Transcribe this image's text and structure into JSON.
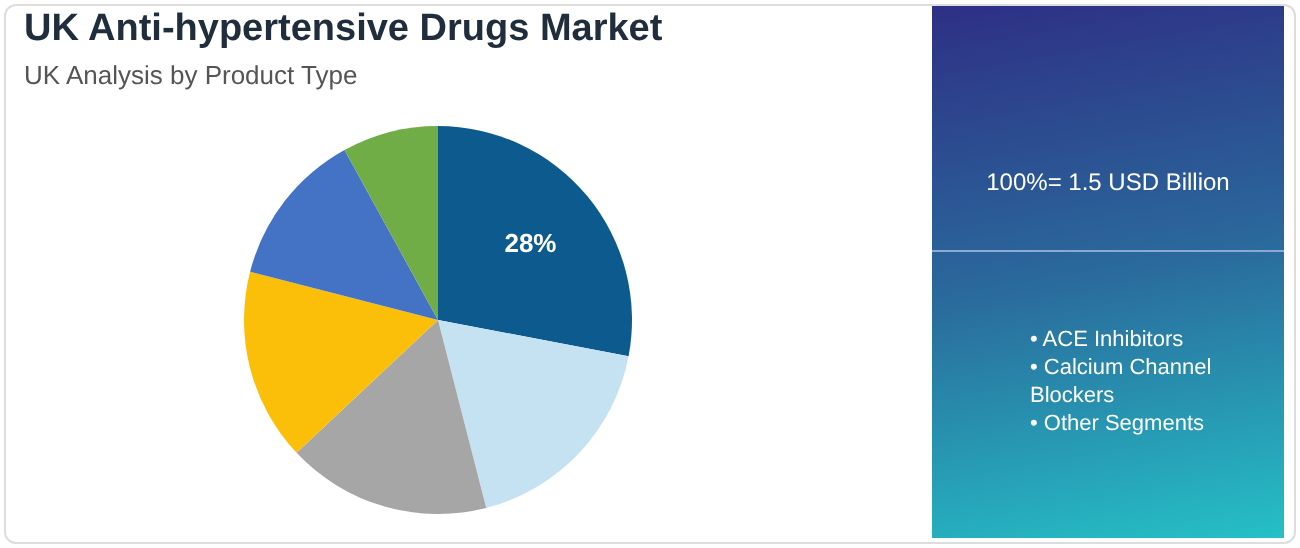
{
  "chart_data": {
    "type": "pie",
    "title": "UK Anti-hypertensive Drugs Market",
    "subtitle": "UK Analysis by Product Type",
    "categories": [
      null,
      null,
      null,
      null,
      null,
      null
    ],
    "values": [
      28,
      18,
      17,
      16,
      13,
      8
    ],
    "colors": [
      "#0d5a8f",
      "#c5e2f2",
      "#a6a6a6",
      "#fbbf0a",
      "#4472c4",
      "#70ad47"
    ],
    "value_labels": [
      "28%",
      null,
      null,
      null,
      null,
      null
    ],
    "legend": false,
    "annotations": [
      "100%= 1.5 USD Billion",
      "• ACE Inhibitors",
      "• Calcium Channel Blockers",
      "• Other Segments"
    ]
  }
}
